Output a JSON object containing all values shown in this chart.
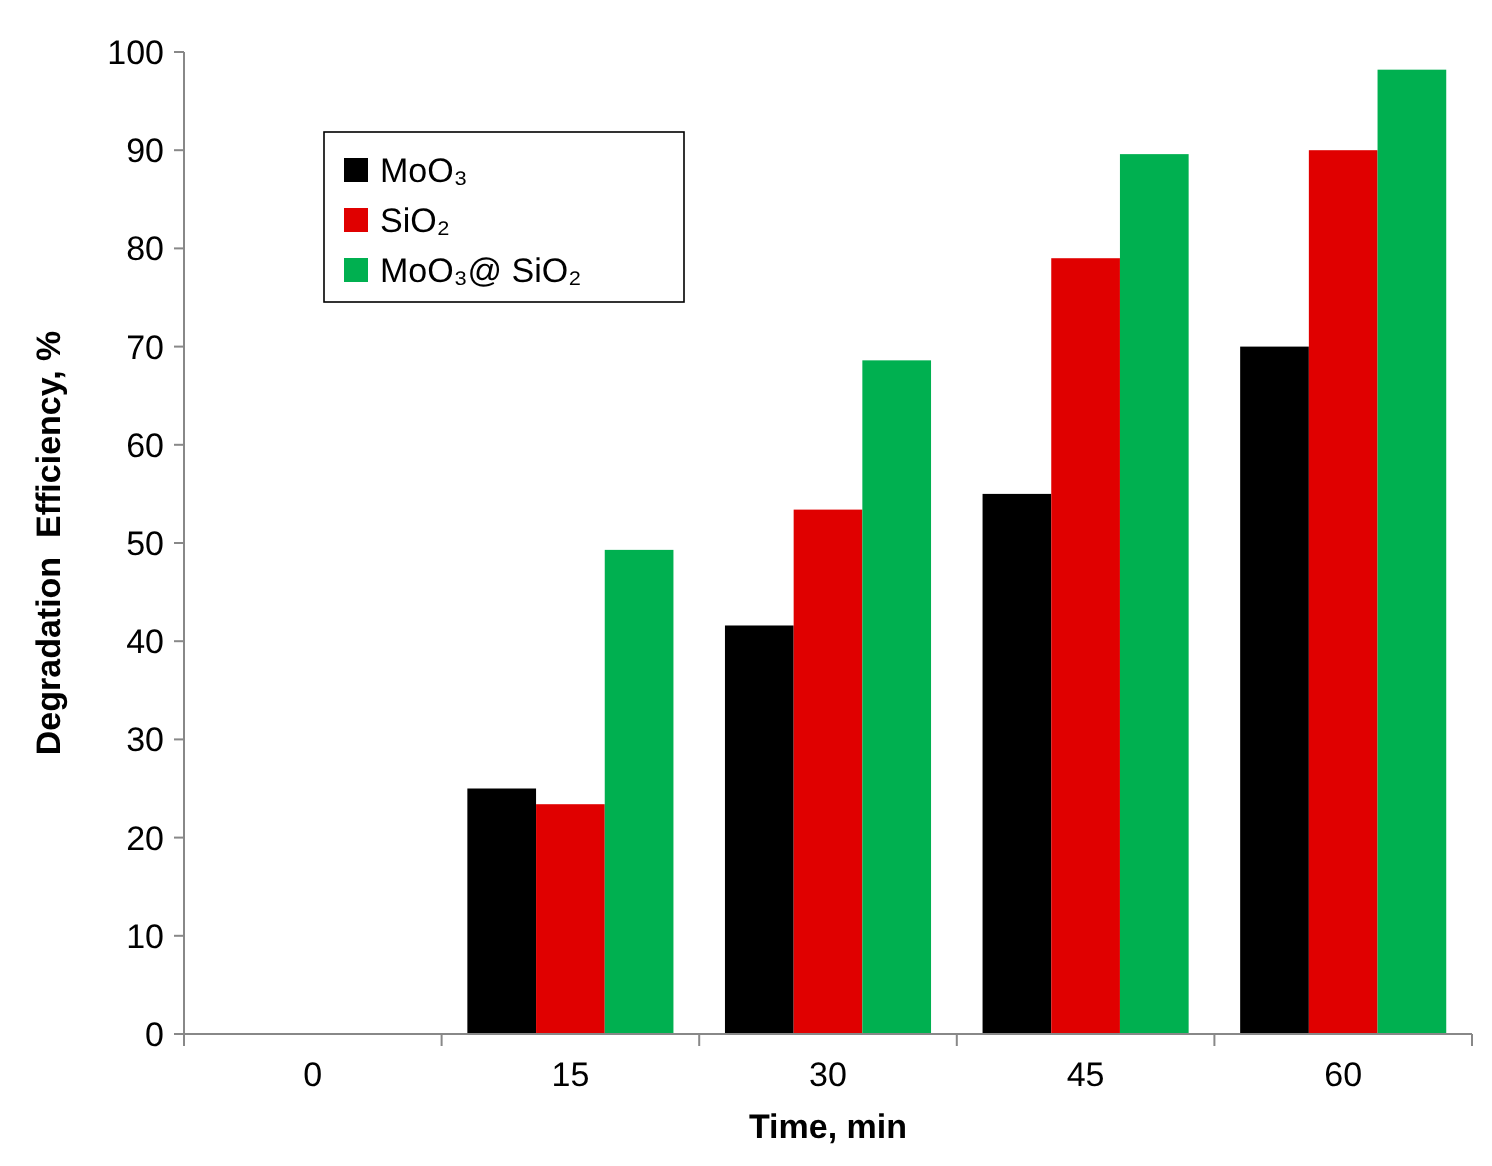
{
  "chart_data": {
    "type": "bar",
    "xlabel": "Time, min",
    "ylabel": "Degradation  Efficiency, %",
    "categories": [
      "0",
      "15",
      "30",
      "45",
      "60"
    ],
    "series": [
      {
        "name": "MoO₃",
        "color": "#000000",
        "values": [
          0,
          25,
          41.6,
          55,
          70
        ]
      },
      {
        "name": "SiO₂",
        "color": "#e00000",
        "values": [
          0,
          23.4,
          53.4,
          79,
          90
        ]
      },
      {
        "name": "MoO₃@ SiO₂",
        "color": "#00b050",
        "values": [
          0,
          49.3,
          68.6,
          89.6,
          98.2
        ]
      }
    ],
    "ylim": [
      0,
      100
    ],
    "yticks": [
      0,
      10,
      20,
      30,
      40,
      50,
      60,
      70,
      80,
      90,
      100
    ],
    "grid": false,
    "legend": "top left"
  }
}
